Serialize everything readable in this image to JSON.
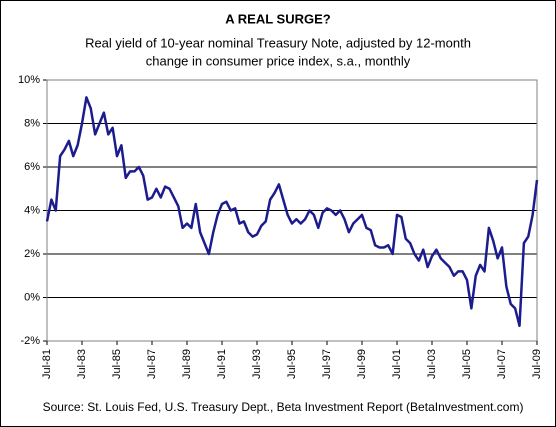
{
  "chart_data": {
    "type": "line",
    "title": "A REAL SURGE?",
    "subtitle": [
      "Real yield of 10-year nominal Treasury Note, adjusted by 12-month",
      "change in consumer price index, s.a., monthly"
    ],
    "source": "Source: St. Louis Fed, U.S. Treasury Dept., Beta Investment Report (BetaInvestment.com)",
    "categories": [
      "Jul-81",
      null,
      null,
      null,
      null,
      null,
      null,
      null,
      "Jul-83",
      null,
      null,
      null,
      null,
      null,
      null,
      null,
      "Jul-85",
      null,
      null,
      null,
      null,
      null,
      null,
      null,
      "Jul-87",
      null,
      null,
      null,
      null,
      null,
      null,
      null,
      "Jul-89",
      null,
      null,
      null,
      null,
      null,
      null,
      null,
      "Jul-91",
      null,
      null,
      null,
      null,
      null,
      null,
      null,
      "Jul-93",
      null,
      null,
      null,
      null,
      null,
      null,
      null,
      "Jul-95",
      null,
      null,
      null,
      null,
      null,
      null,
      null,
      "Jul-97",
      null,
      null,
      null,
      null,
      null,
      null,
      null,
      "Jul-99",
      null,
      null,
      null,
      null,
      null,
      null,
      null,
      "Jul-01",
      null,
      null,
      null,
      null,
      null,
      null,
      null,
      "Jul-03",
      null,
      null,
      null,
      null,
      null,
      null,
      null,
      "Jul-05",
      null,
      null,
      null,
      null,
      null,
      null,
      null,
      "Jul-07",
      null,
      null,
      null,
      null,
      null,
      null,
      null,
      "Jul-09"
    ],
    "series": [
      {
        "color": "#1c1c8e",
        "values": [
          3.5,
          4.5,
          4.0,
          6.5,
          6.8,
          7.2,
          6.5,
          7.0,
          8.0,
          9.2,
          8.7,
          7.5,
          8.0,
          8.5,
          7.5,
          7.8,
          6.5,
          7.0,
          5.5,
          5.8,
          5.8,
          6.0,
          5.6,
          4.5,
          4.6,
          5.0,
          4.6,
          5.1,
          5.0,
          4.6,
          4.2,
          3.2,
          3.4,
          3.2,
          4.3,
          3.0,
          2.5,
          2.0,
          3.0,
          3.8,
          4.3,
          4.4,
          4.0,
          4.1,
          3.4,
          3.5,
          3.0,
          2.8,
          2.9,
          3.3,
          3.5,
          4.5,
          4.8,
          5.2,
          4.5,
          3.8,
          3.4,
          3.6,
          3.4,
          3.6,
          4.0,
          3.8,
          3.2,
          3.9,
          4.1,
          4.0,
          3.8,
          4.0,
          3.6,
          3.0,
          3.4,
          3.6,
          3.8,
          3.2,
          3.1,
          2.4,
          2.3,
          2.3,
          2.4,
          2.0,
          3.8,
          3.7,
          2.7,
          2.5,
          2.0,
          1.7,
          2.2,
          1.4,
          1.9,
          2.2,
          1.8,
          1.6,
          1.4,
          1.0,
          1.2,
          1.2,
          0.8,
          -0.5,
          1.0,
          1.5,
          1.2,
          3.2,
          2.6,
          1.8,
          2.3,
          0.5,
          -0.3,
          -0.5,
          -1.3,
          2.5,
          2.8,
          3.8,
          5.4
        ]
      }
    ],
    "ylim": [
      -2,
      10
    ],
    "yticks": [
      {
        "value": -2,
        "label": "-2%"
      },
      {
        "value": 0,
        "label": "0%"
      },
      {
        "value": 2,
        "label": "2%"
      },
      {
        "value": 4,
        "label": "4%"
      },
      {
        "value": 6,
        "label": "6%"
      },
      {
        "value": 8,
        "label": "8%"
      },
      {
        "value": 10,
        "label": "10%"
      }
    ],
    "grid": true
  }
}
